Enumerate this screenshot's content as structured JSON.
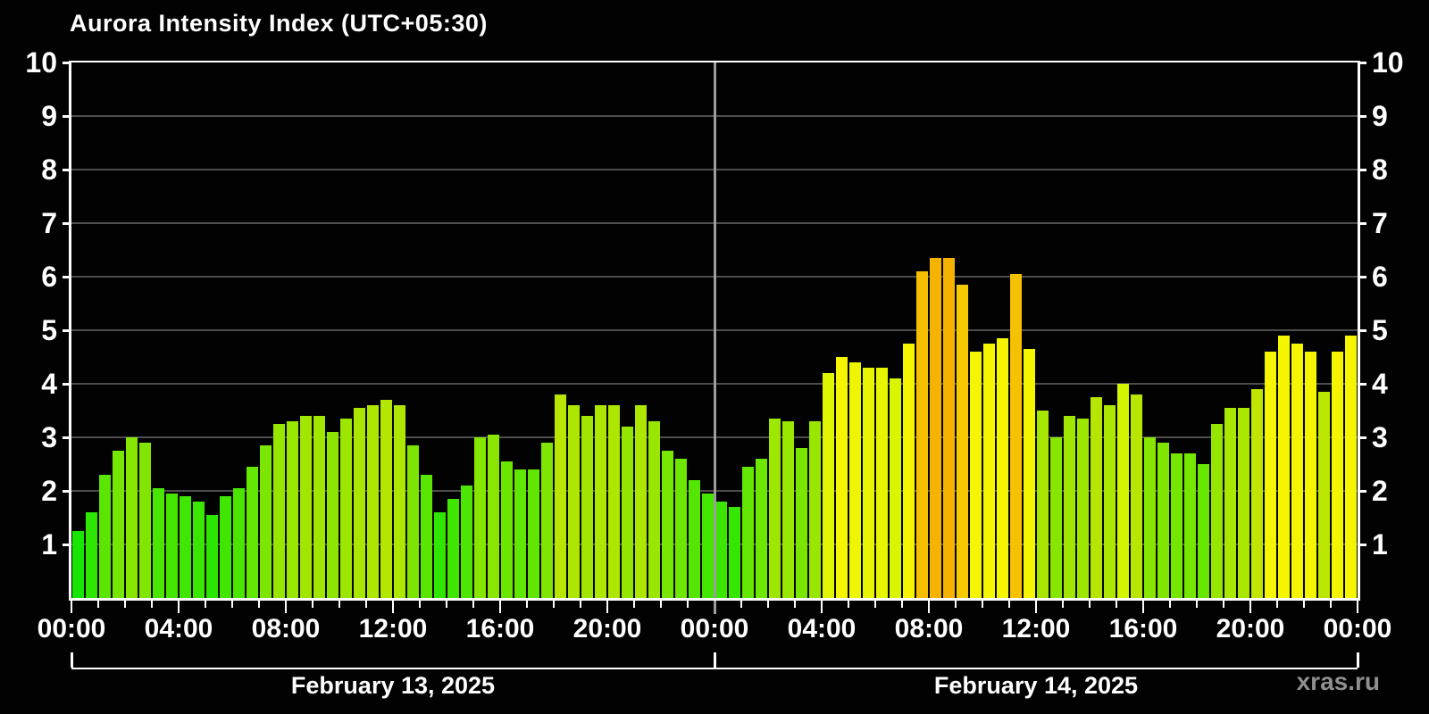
{
  "title": "Aurora Intensity Index (UTC+05:30)",
  "watermark": "xras.ru",
  "colors": {
    "background": "#020202",
    "axis": "#ffffff",
    "gridline": "#4d4d4d",
    "day_separator": "#9c9c9c",
    "watermark": "#8f8f8f",
    "bar_low_green": "#2ee000",
    "bar_mid_yellowgreen": "#9ff000",
    "bar_yellow": "#f5f500",
    "bar_orange": "#f9b400"
  },
  "y_axis": {
    "tick_labels": [
      "1",
      "2",
      "3",
      "4",
      "5",
      "6",
      "7",
      "8",
      "9",
      "10"
    ],
    "min": 0,
    "max": 10
  },
  "x_axis": {
    "tick_labels_per_day": [
      "00:00",
      "04:00",
      "08:00",
      "12:00",
      "16:00",
      "20:00"
    ],
    "final_tick_label": "00:00",
    "minor_tick_every_minutes": 60,
    "major_tick_every_minutes": 240
  },
  "chart_data": {
    "type": "bar",
    "title": "Aurora Intensity Index (UTC+05:30)",
    "ylabel": "",
    "xlabel": "",
    "ylim": [
      0,
      10
    ],
    "grid": true,
    "bar_interval_minutes": 30,
    "legend": "none",
    "color_scale": {
      "mode": "hsl-by-value",
      "saturation": 100,
      "stops_hue": [
        [
          1,
          118
        ],
        [
          4.5,
          60
        ],
        [
          5,
          60
        ],
        [
          6.5,
          42
        ]
      ],
      "lightness_low": 45,
      "lightness_high": 48
    },
    "days": [
      {
        "date": "February 13, 2025",
        "start_label": "00:00",
        "values": [
          1.25,
          1.6,
          2.3,
          2.75,
          3.0,
          2.9,
          2.05,
          1.95,
          1.9,
          1.8,
          1.55,
          1.9,
          2.05,
          2.45,
          2.85,
          3.25,
          3.3,
          3.4,
          3.4,
          3.1,
          3.35,
          3.55,
          3.6,
          3.7,
          3.6,
          2.85,
          2.3,
          1.6,
          1.85,
          2.1,
          3.0,
          3.05,
          2.55,
          2.4,
          2.4,
          2.9,
          3.8,
          3.6,
          3.4,
          3.6,
          3.6,
          3.2,
          3.6,
          3.3,
          2.75,
          2.6,
          2.2,
          1.95
        ]
      },
      {
        "date": "February 14, 2025",
        "start_label": "00:00",
        "values": [
          1.8,
          1.7,
          2.45,
          2.6,
          3.35,
          3.3,
          2.8,
          3.3,
          4.2,
          4.5,
          4.4,
          4.3,
          4.3,
          4.1,
          4.75,
          6.1,
          6.35,
          6.35,
          5.85,
          4.6,
          4.75,
          4.85,
          6.05,
          4.65,
          3.5,
          3.0,
          3.4,
          3.35,
          3.75,
          3.6,
          4.0,
          3.8,
          3.0,
          2.9,
          2.7,
          2.7,
          2.5,
          3.25,
          3.55,
          3.55,
          3.9,
          4.6,
          4.9,
          4.75,
          4.6,
          3.85,
          4.6,
          4.9
        ]
      }
    ]
  }
}
